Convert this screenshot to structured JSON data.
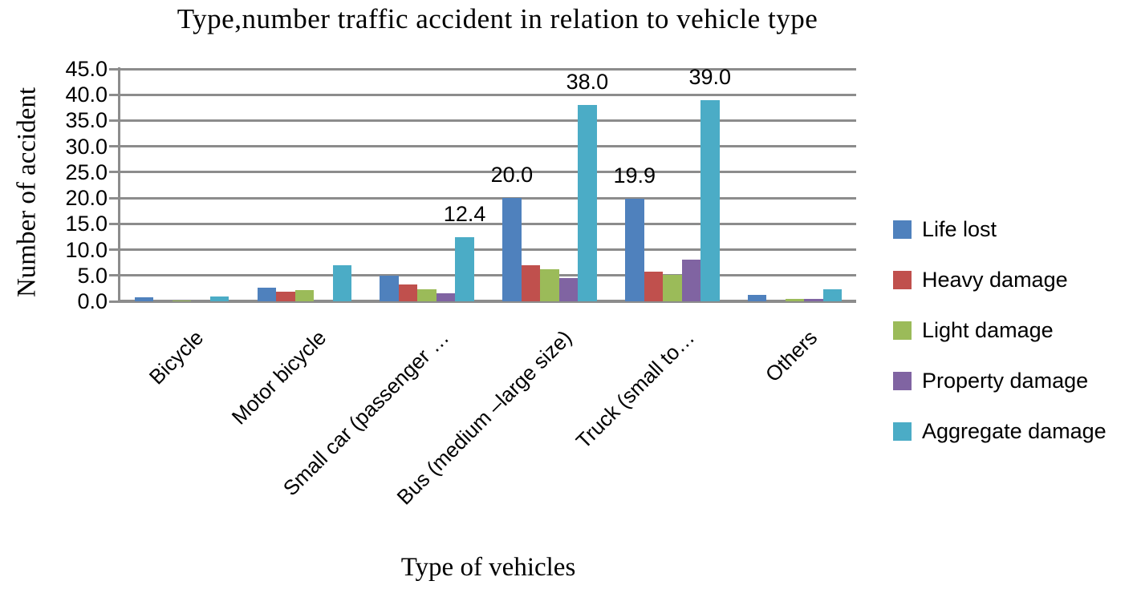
{
  "chart_data": {
    "type": "bar",
    "title": "Type,number traffic accident in relation to vehicle type",
    "xlabel": "Type of vehicles",
    "ylabel": "Number of accident",
    "ylim": [
      0,
      45
    ],
    "ytick_step": 5,
    "ytick_labels": [
      "0.0",
      "5.0",
      "10.0",
      "15.0",
      "20.0",
      "25.0",
      "30.0",
      "35.0",
      "40.0",
      "45.0"
    ],
    "grid": true,
    "legend_position": "right",
    "categories": [
      "Bicycle",
      "Motor bicycle",
      "Small car (passenger …",
      "Bus (medium –large size)",
      "Truck (small to…",
      "Others"
    ],
    "series": [
      {
        "name": "Life lost",
        "color": "#4F81BD",
        "values": [
          0.7,
          2.7,
          5.0,
          20.0,
          19.9,
          1.2
        ]
      },
      {
        "name": "Heavy damage",
        "color": "#C0504D",
        "values": [
          0.0,
          1.8,
          3.2,
          7.0,
          5.8,
          0.0
        ]
      },
      {
        "name": "Light damage",
        "color": "#9BBB59",
        "values": [
          0.2,
          2.2,
          2.4,
          6.2,
          5.1,
          0.4
        ]
      },
      {
        "name": "Property damage",
        "color": "#8064A2",
        "values": [
          0.0,
          0.0,
          1.6,
          4.5,
          8.0,
          0.5
        ]
      },
      {
        "name": "Aggregate damage",
        "color": "#4BACC6",
        "values": [
          1.0,
          7.0,
          12.4,
          38.0,
          39.0,
          2.4
        ]
      }
    ],
    "data_labels": [
      {
        "series": 4,
        "category": 2,
        "text": "12.4"
      },
      {
        "series": 0,
        "category": 3,
        "text": "20.0"
      },
      {
        "series": 4,
        "category": 3,
        "text": "38.0"
      },
      {
        "series": 0,
        "category": 4,
        "text": "19.9"
      },
      {
        "series": 4,
        "category": 4,
        "text": "39.0"
      }
    ],
    "gridline_color": "#8C8C8C",
    "text_color": "#000000"
  }
}
